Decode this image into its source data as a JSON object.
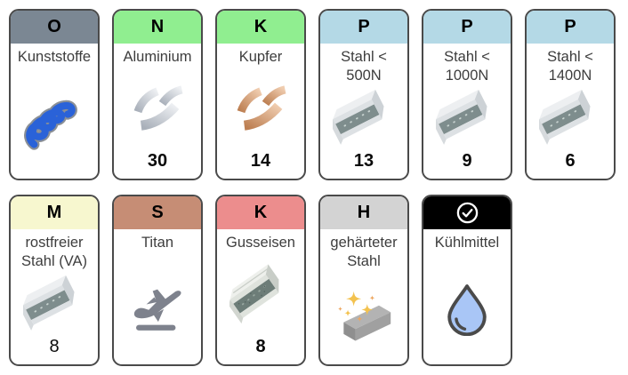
{
  "palette": {
    "card_border": "#4a4a4a",
    "label_text": "#3d3d3d",
    "plastic_blue": "#2a62d8",
    "plastic_outline": "#8a8f96",
    "silver_light": "#eef0f3",
    "silver_dark": "#a9b0ba",
    "copper_light": "#f0cdb0",
    "copper_dark": "#bd7f52",
    "steel_web": "#7e8d8d",
    "iron_web": "#6d7d78",
    "plane_gray": "#7e828d",
    "sparkle_gold": "#f3c24f",
    "sparkle_small": "#eda65f",
    "block_gray": "#b3b3b3",
    "drop_blue": "#a9c6f6",
    "drop_outline": "#4a4a4a",
    "check_white": "#ffffff"
  },
  "cards": [
    {
      "id": "kunststoffe",
      "letter": "O",
      "header_bg": "#7b8793",
      "label": "Kunststoffe",
      "icon": "plastic-swarf",
      "count": "",
      "count_bold": true
    },
    {
      "id": "aluminium",
      "letter": "N",
      "header_bg": "#90ee90",
      "label": "Aluminium",
      "icon": "aluminium-chips",
      "count": "30",
      "count_bold": true
    },
    {
      "id": "kupfer",
      "letter": "K",
      "header_bg": "#90ee90",
      "label": "Kupfer",
      "icon": "copper-chips",
      "count": "14",
      "count_bold": true
    },
    {
      "id": "stahl-500n",
      "letter": "P",
      "header_bg": "#b4d9e6",
      "label": "Stahl < 500N",
      "icon": "steel-beam",
      "count": "13",
      "count_bold": true
    },
    {
      "id": "stahl-1000n",
      "letter": "P",
      "header_bg": "#b4d9e6",
      "label": "Stahl < 1000N",
      "icon": "steel-beam",
      "count": "9",
      "count_bold": true
    },
    {
      "id": "stahl-1400n",
      "letter": "P",
      "header_bg": "#b4d9e6",
      "label": "Stahl < 1400N",
      "icon": "steel-beam",
      "count": "6",
      "count_bold": true
    },
    {
      "id": "rostfreier-stahl-va",
      "letter": "M",
      "header_bg": "#f7f7cf",
      "label": "rostfreier Stahl (VA)",
      "icon": "steel-beam",
      "count": "8",
      "count_bold": false
    },
    {
      "id": "titan",
      "letter": "S",
      "header_bg": "#c68d75",
      "label": "Titan",
      "icon": "airplane",
      "count": "",
      "count_bold": true
    },
    {
      "id": "gusseisen",
      "letter": "K",
      "header_bg": "#ec8d8d",
      "label": "Gusseisen",
      "icon": "cast-iron-beam",
      "count": "8",
      "count_bold": true
    },
    {
      "id": "gehaerteter-stahl",
      "letter": "H",
      "header_bg": "#d3d3d3",
      "label": "gehärteter Stahl",
      "icon": "hardened-steel",
      "count": "",
      "count_bold": true
    },
    {
      "id": "kuehlmittel",
      "letter": "",
      "header_icon": "check-circle",
      "header_bg": "#000000",
      "label": "Kühlmittel",
      "icon": "water-drop",
      "count": "",
      "count_bold": true
    }
  ]
}
